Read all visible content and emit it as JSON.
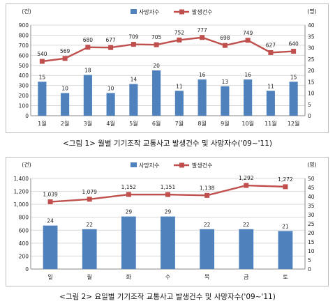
{
  "colors": {
    "bar": "#4f81bd",
    "line": "#c0504d",
    "grid": "#d9d9d9",
    "axis": "#888888"
  },
  "chart_data": [
    {
      "type": "bar+line",
      "caption": "<그림 1> 월별 기기조작 교통사고 발생건수 및 사망자수('09~'11)",
      "left_unit": "(건)",
      "right_unit": "(명)",
      "legend": {
        "bar": "사망자수",
        "line": "발생건수",
        "placement": "top-center"
      },
      "grid": true,
      "categories": [
        "1월",
        "2월",
        "3월",
        "4월",
        "5월",
        "6월",
        "7월",
        "8월",
        "9월",
        "10월",
        "11월",
        "12월"
      ],
      "left_ticks": [
        0,
        100,
        200,
        300,
        400,
        500,
        600,
        700,
        800,
        900
      ],
      "right_ticks": [
        0,
        5,
        10,
        15,
        20,
        25,
        30,
        35,
        40
      ],
      "ylim_left": [
        0,
        900
      ],
      "ylim_right": [
        0,
        40
      ],
      "series": [
        {
          "name": "사망자수",
          "axis": "right",
          "kind": "bar",
          "values": [
            15,
            10,
            18,
            10,
            14,
            20,
            11,
            16,
            13,
            16,
            11,
            15
          ]
        },
        {
          "name": "발생건수",
          "axis": "left",
          "kind": "line",
          "values": [
            540,
            569,
            680,
            677,
            709,
            705,
            752,
            777,
            698,
            749,
            627,
            640
          ]
        }
      ]
    },
    {
      "type": "bar+line",
      "caption": "<그림 2> 요일별 기기조작 교통사고 발생건수 및 사망자수('09~'11)",
      "left_unit": "(건)",
      "right_unit": "(명)",
      "legend": {
        "bar": "사망자수",
        "line": "발생건수",
        "placement": "top-center"
      },
      "grid": true,
      "categories": [
        "일",
        "월",
        "화",
        "수",
        "목",
        "금",
        "토"
      ],
      "left_ticks": [
        "0",
        "200",
        "400",
        "600",
        "800",
        "1,000",
        "1,200",
        "1,400"
      ],
      "right_ticks": [
        0,
        5,
        10,
        15,
        20,
        25,
        30,
        35,
        40,
        45,
        50
      ],
      "ylim_left": [
        0,
        1400
      ],
      "ylim_right": [
        0,
        50
      ],
      "series": [
        {
          "name": "사망자수",
          "axis": "right",
          "kind": "bar",
          "values": [
            24,
            22,
            29,
            29,
            22,
            22,
            21
          ]
        },
        {
          "name": "발생건수",
          "axis": "left",
          "kind": "line",
          "values": [
            1039,
            1079,
            1152,
            1151,
            1138,
            1292,
            1272
          ],
          "labels": [
            "1,039",
            "1,079",
            "1,152",
            "1,151",
            "1,138",
            "1,292",
            "1,272"
          ]
        }
      ]
    }
  ]
}
